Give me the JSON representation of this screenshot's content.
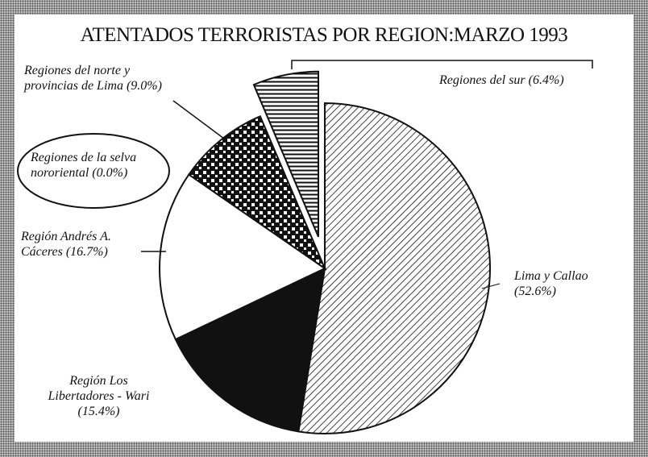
{
  "chart_data": {
    "type": "pie",
    "title": "ATENTADOS TERRORISTAS POR REGION:MARZO 1993",
    "categories": [
      "Lima y Callao",
      "Región Los Libertadores - Wari",
      "Región Andrés A. Cáceres",
      "Regiones de la selva nororiental",
      "Regiones del norte y provincias de Lima",
      "Regiones del sur"
    ],
    "values": [
      52.6,
      15.4,
      16.7,
      0.0,
      9.0,
      6.4
    ],
    "value_labels": [
      "(52.6%)",
      "(15.4%)",
      "(16.7%)",
      "(0.0%)",
      "(9.0%)",
      "(6.4%)"
    ]
  }
}
